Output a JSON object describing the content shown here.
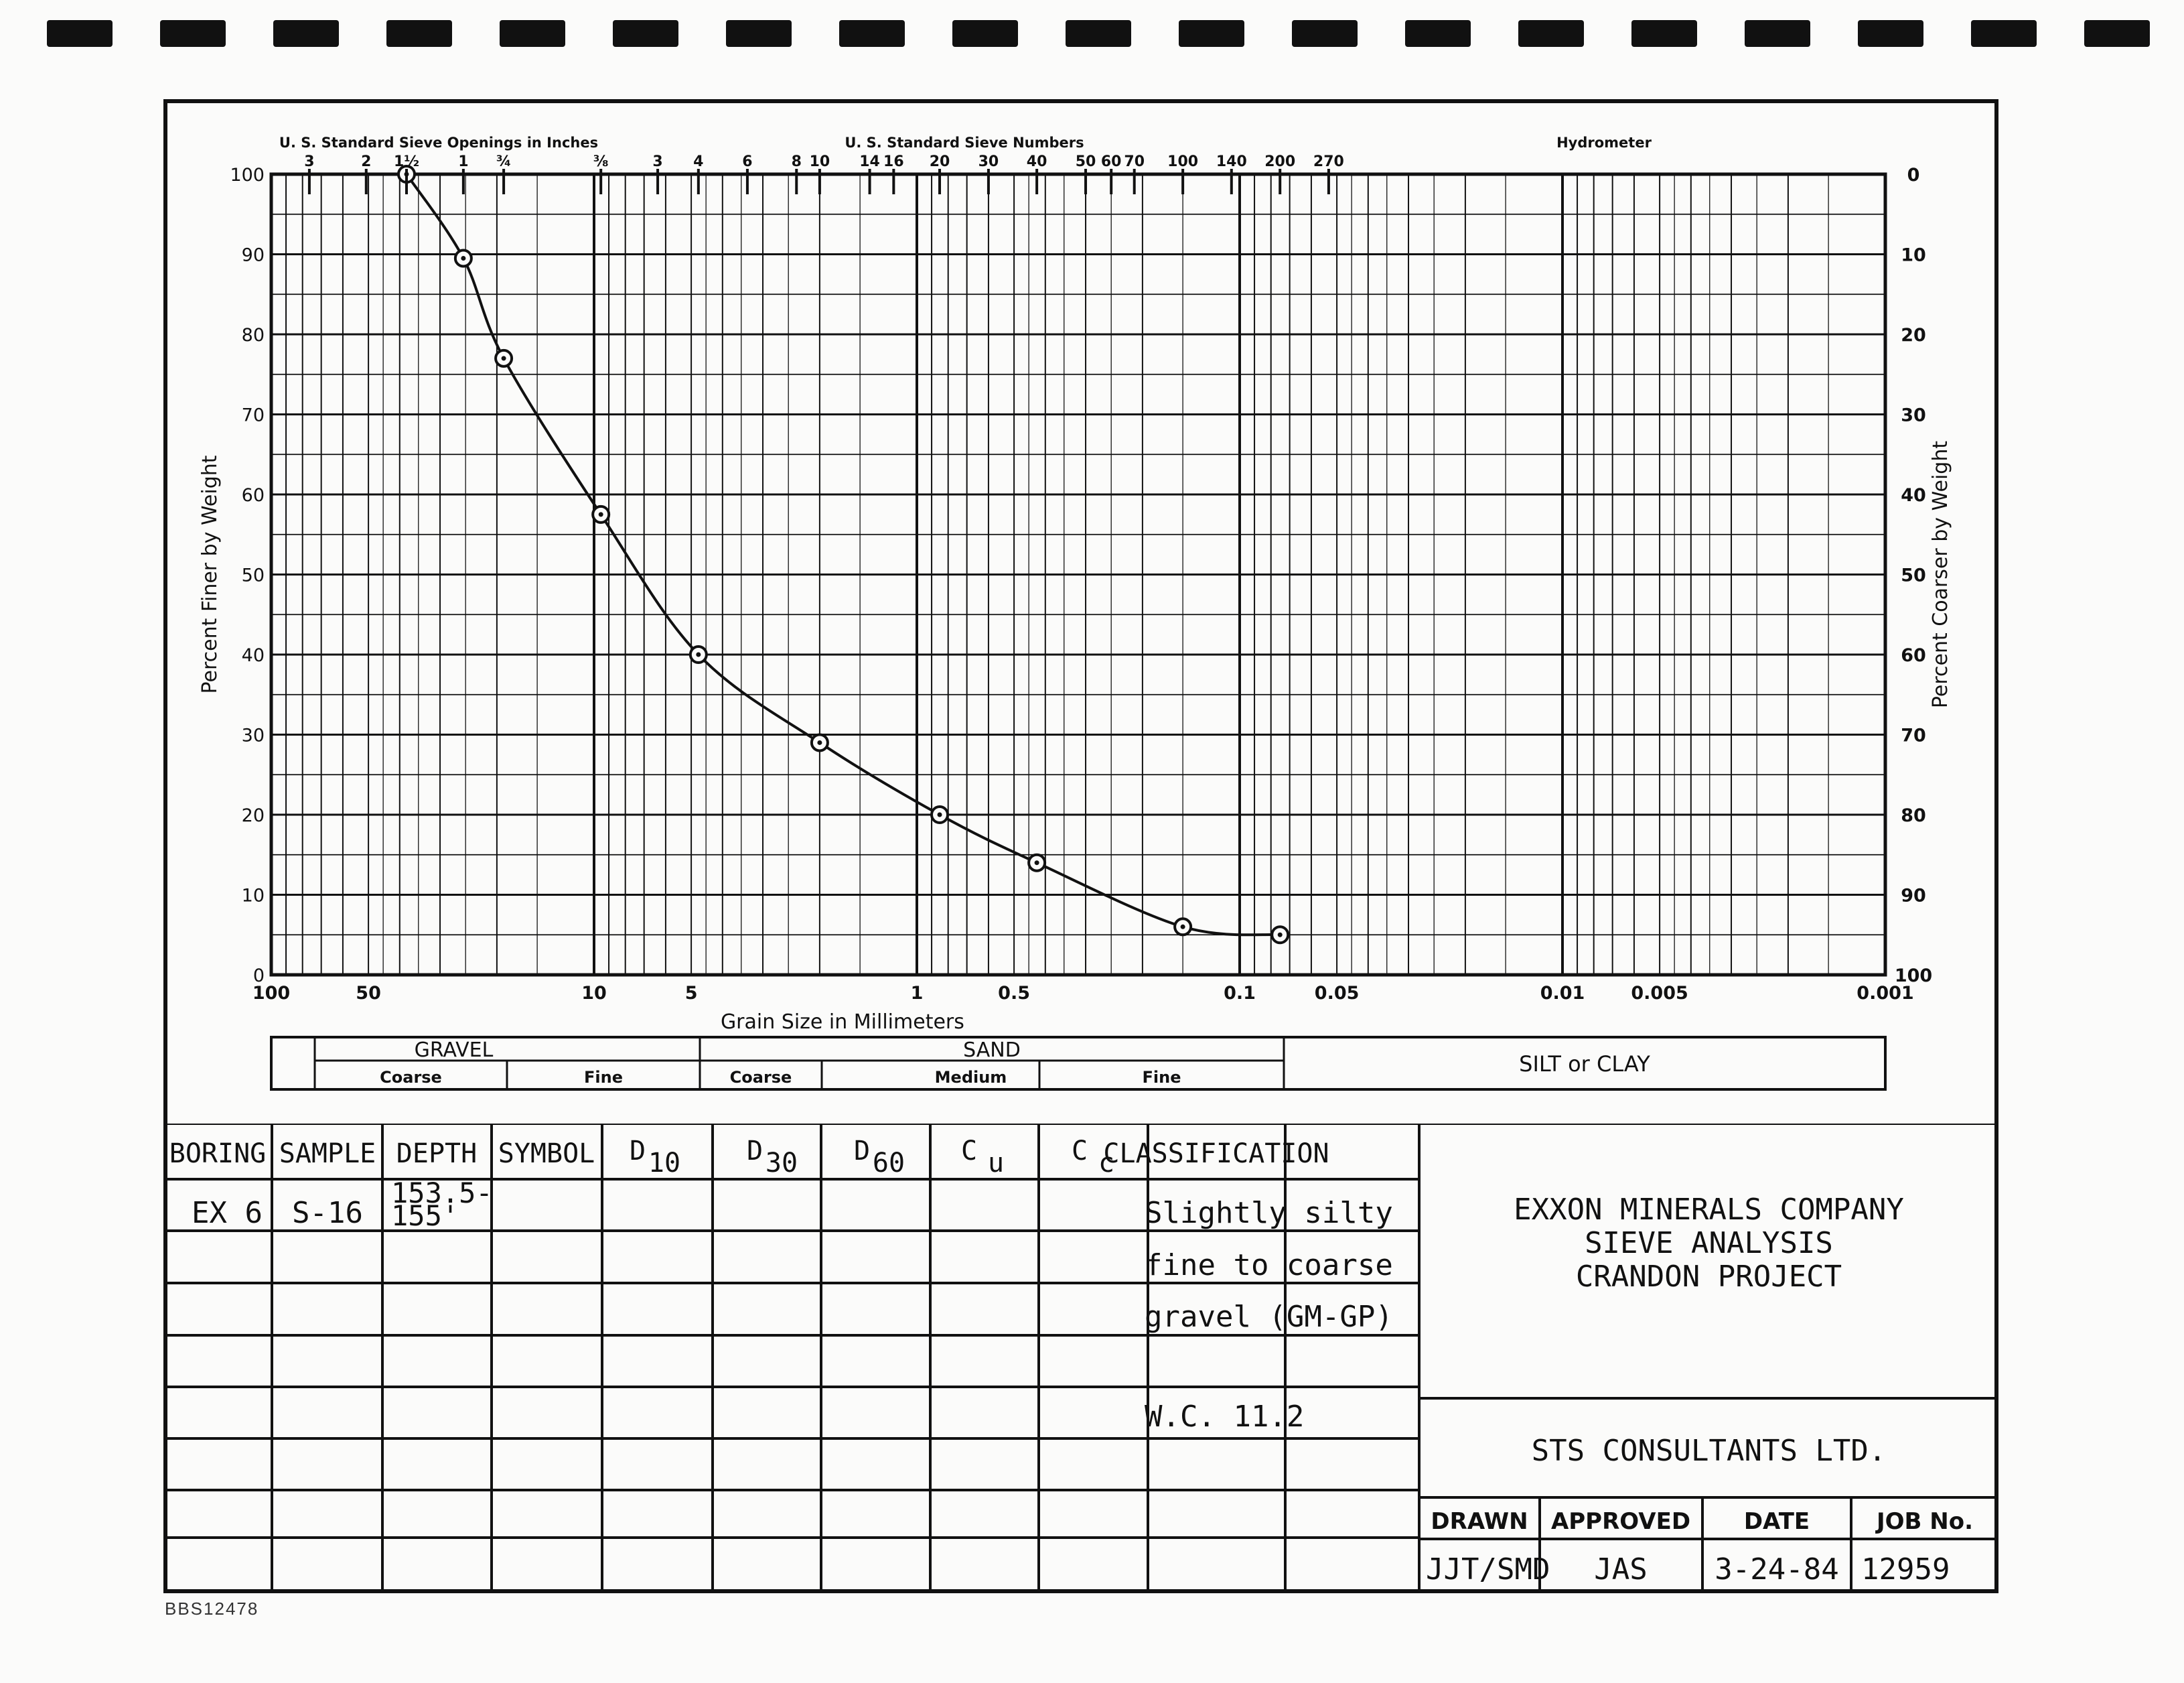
{
  "chart_data": {
    "type": "line",
    "xscale": "log",
    "xlim": [
      100,
      0.001
    ],
    "ylim": [
      0,
      100
    ],
    "xlabel": "Grain Size in Millimeters",
    "ylabel": "Percent Finer by Weight",
    "ylabel_right": "Percent Coarser by Weight",
    "x_ticks": [
      {
        "v": 100,
        "label": "100"
      },
      {
        "v": 50,
        "label": "50"
      },
      {
        "v": 10,
        "label": "10"
      },
      {
        "v": 5,
        "label": "5"
      },
      {
        "v": 1,
        "label": "1"
      },
      {
        "v": 0.5,
        "label": "0.5"
      },
      {
        "v": 0.1,
        "label": "0.1"
      },
      {
        "v": 0.05,
        "label": "0.05"
      },
      {
        "v": 0.01,
        "label": "0.01"
      },
      {
        "v": 0.005,
        "label": "0.005"
      },
      {
        "v": 0.001,
        "label": "0.001"
      }
    ],
    "y_ticks": [
      0,
      10,
      20,
      30,
      40,
      50,
      60,
      70,
      80,
      90,
      100
    ],
    "y_ticks_right": [
      "0",
      "10",
      "20",
      "30",
      "40",
      "50",
      "60",
      "70",
      "80",
      "90",
      "100"
    ],
    "top_axis": {
      "sieve_inches_title": "U. S. Standard Sieve Openings in Inches",
      "sieve_inches": [
        {
          "label": "3",
          "mm": 76.2
        },
        {
          "label": "2",
          "mm": 50.8
        },
        {
          "label": "1½",
          "mm": 38.1
        },
        {
          "label": "1",
          "mm": 25.4
        },
        {
          "label": "¾",
          "mm": 19.05
        },
        {
          "label": "⅜",
          "mm": 9.525
        }
      ],
      "sieve_numbers_title": "U. S. Standard Sieve Numbers",
      "sieve_numbers": [
        {
          "label": "3",
          "mm": 6.35
        },
        {
          "label": "4",
          "mm": 4.75
        },
        {
          "label": "6",
          "mm": 3.35
        },
        {
          "label": "8",
          "mm": 2.36
        },
        {
          "label": "10",
          "mm": 2.0
        },
        {
          "label": "14",
          "mm": 1.4
        },
        {
          "label": "16",
          "mm": 1.18
        },
        {
          "label": "20",
          "mm": 0.85
        },
        {
          "label": "30",
          "mm": 0.6
        },
        {
          "label": "40",
          "mm": 0.425
        },
        {
          "label": "50",
          "mm": 0.3
        },
        {
          "label": "60",
          "mm": 0.25
        },
        {
          "label": "70",
          "mm": 0.212
        },
        {
          "label": "100",
          "mm": 0.15
        },
        {
          "label": "140",
          "mm": 0.106
        },
        {
          "label": "200",
          "mm": 0.075
        },
        {
          "label": "270",
          "mm": 0.053
        }
      ],
      "hydrometer_title": "Hydrometer"
    },
    "series": [
      {
        "x": [
          38.1,
          25.4,
          19.05,
          9.525,
          4.75,
          2.0,
          0.85,
          0.425,
          0.15,
          0.075
        ],
        "y": [
          100,
          89.5,
          77,
          57.5,
          40,
          29,
          20,
          14,
          6,
          5
        ]
      }
    ]
  },
  "classification_band": {
    "gravel": "GRAVEL",
    "gravel_coarse": "Coarse",
    "gravel_fine": "Fine",
    "sand": "SAND",
    "sand_coarse": "Coarse",
    "sand_medium": "Medium",
    "sand_fine": "Fine",
    "silt_clay": "SILT or CLAY"
  },
  "table": {
    "headers": {
      "boring": "BORING",
      "sample": "SAMPLE",
      "depth": "DEPTH",
      "symbol": "SYMBOL",
      "d10": "D",
      "d10_sub": "10",
      "d30": "D",
      "d30_sub": "30",
      "d60": "D",
      "d60_sub": "60",
      "cu": "C",
      "cu_sub": "u",
      "cc": "C",
      "cc_sub": "c",
      "classification": "CLASSIFICATION"
    },
    "row": {
      "boring": "EX 6",
      "sample": "S-16",
      "depth_line1": "153.5-",
      "depth_line2": "155'",
      "classification_lines": [
        "Slightly silty",
        "fine to coarse",
        "gravel (GM-GP)",
        "",
        "W.C. 11.2"
      ]
    }
  },
  "title_block": {
    "company": "EXXON MINERALS COMPANY",
    "report": "SIEVE ANALYSIS",
    "project": "CRANDON PROJECT",
    "consultant": "STS CONSULTANTS LTD.",
    "drawn_label": "DRAWN",
    "drawn": "JJT/SMD",
    "approved_label": "APPROVED",
    "approved": "JAS",
    "date_label": "DATE",
    "date": "3-24-84",
    "job_label": "JOB No.",
    "job": "12959"
  },
  "footnote": "BBS12478"
}
